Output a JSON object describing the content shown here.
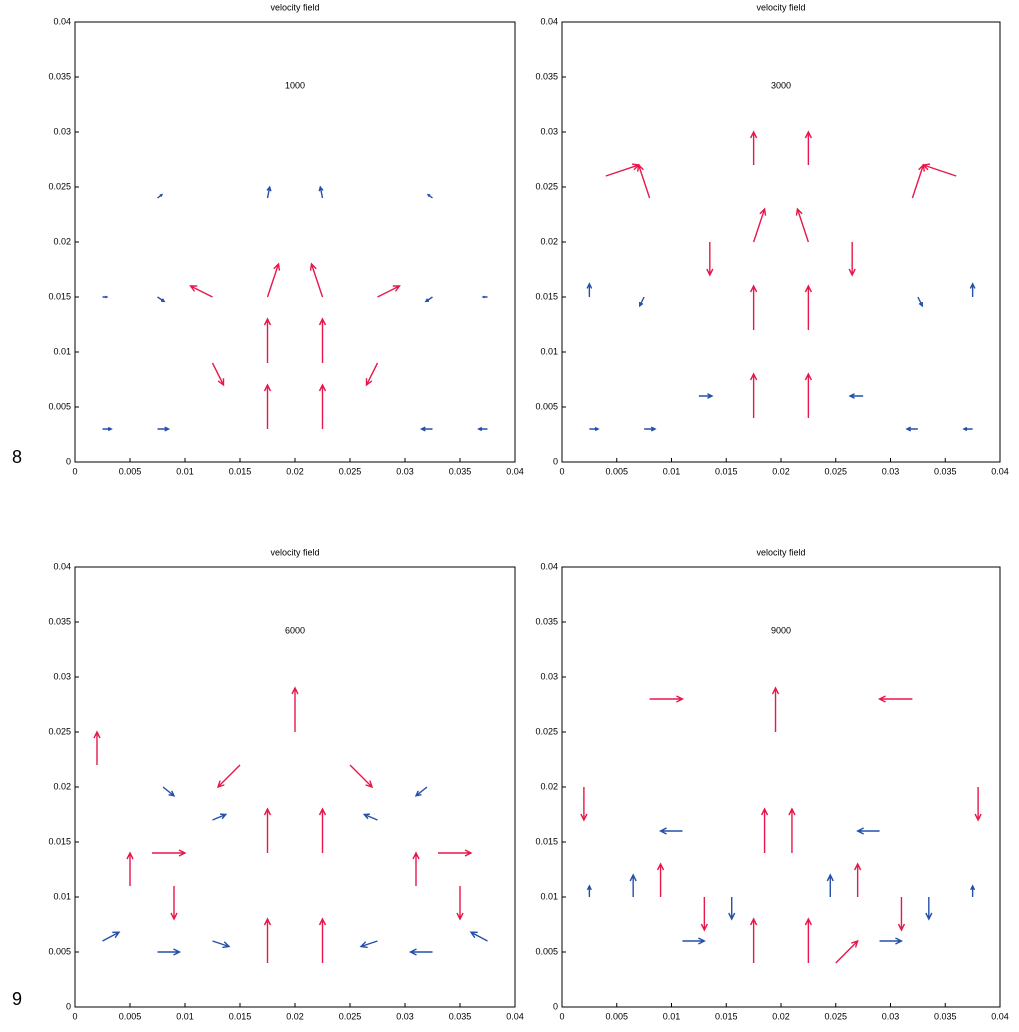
{
  "figure_labels": [
    "8",
    "9"
  ],
  "chart_data": [
    {
      "type": "quiver",
      "title": "velocity field",
      "annotation": "1000",
      "xlim": [
        0,
        0.04
      ],
      "ylim": [
        0,
        0.04
      ],
      "xticks": [
        0,
        0.005,
        0.01,
        0.015,
        0.02,
        0.025,
        0.03,
        0.035,
        0.04
      ],
      "yticks": [
        0,
        0.005,
        0.01,
        0.015,
        0.02,
        0.025,
        0.03,
        0.035,
        0.04
      ],
      "series": [
        {
          "color": "#2350a8",
          "x": [
            0.0025,
            0.0075,
            0.0325,
            0.0375,
            0.0025,
            0.0075,
            0.0325,
            0.0375,
            0.0075,
            0.0325,
            0.0175,
            0.0225
          ],
          "y": [
            0.003,
            0.003,
            0.003,
            0.003,
            0.015,
            0.015,
            0.015,
            0.015,
            0.024,
            0.024,
            0.024,
            0.024
          ],
          "u": [
            0.0008,
            0.001,
            -0.001,
            -0.0008,
            0.0004,
            0.0006,
            -0.0006,
            -0.0004,
            0.0004,
            -0.0004,
            0.0002,
            -0.0002
          ],
          "v": [
            0,
            0,
            0,
            0,
            0,
            -0.0004,
            -0.0004,
            0,
            0.0003,
            0.0003,
            0.001,
            0.001
          ]
        },
        {
          "color": "#e8174a",
          "x": [
            0.0175,
            0.0225,
            0.0175,
            0.0225,
            0.0175,
            0.0225,
            0.0125,
            0.0275,
            0.0125,
            0.0275
          ],
          "y": [
            0.003,
            0.003,
            0.009,
            0.009,
            0.015,
            0.015,
            0.015,
            0.015,
            0.009,
            0.009
          ],
          "u": [
            0,
            0,
            0,
            0,
            0.001,
            -0.001,
            -0.002,
            0.002,
            0.001,
            -0.001
          ],
          "v": [
            0.004,
            0.004,
            0.004,
            0.004,
            0.003,
            0.003,
            0.001,
            0.001,
            -0.002,
            -0.002
          ]
        }
      ]
    },
    {
      "type": "quiver",
      "title": "velocity field",
      "annotation": "3000",
      "xlim": [
        0,
        0.04
      ],
      "ylim": [
        0,
        0.04
      ],
      "xticks": [
        0,
        0.005,
        0.01,
        0.015,
        0.02,
        0.025,
        0.03,
        0.035,
        0.04
      ],
      "yticks": [
        0,
        0.005,
        0.01,
        0.015,
        0.02,
        0.025,
        0.03,
        0.035,
        0.04
      ],
      "series": [
        {
          "color": "#2350a8",
          "x": [
            0.0025,
            0.0075,
            0.0125,
            0.0275,
            0.0325,
            0.0375,
            0.0025,
            0.0375,
            0.0075,
            0.0325
          ],
          "y": [
            0.003,
            0.003,
            0.006,
            0.006,
            0.003,
            0.003,
            0.015,
            0.015,
            0.015,
            0.015
          ],
          "u": [
            0.0008,
            0.001,
            0.0012,
            -0.0012,
            -0.001,
            -0.0008,
            0,
            0,
            -0.0004,
            0.0004
          ],
          "v": [
            0,
            0,
            0,
            0,
            0,
            0,
            0.0012,
            0.0012,
            -0.0008,
            -0.0008
          ]
        },
        {
          "color": "#e8174a",
          "x": [
            0.0175,
            0.0225,
            0.0175,
            0.0225,
            0.0175,
            0.0225,
            0.0175,
            0.0225,
            0.004,
            0.008,
            0.032,
            0.036,
            0.0135,
            0.0265
          ],
          "y": [
            0.004,
            0.004,
            0.012,
            0.012,
            0.02,
            0.02,
            0.027,
            0.027,
            0.026,
            0.024,
            0.024,
            0.026,
            0.02,
            0.02
          ],
          "u": [
            0,
            0,
            0,
            0,
            0.001,
            -0.001,
            0,
            0,
            0.003,
            -0.001,
            0.001,
            -0.003,
            0,
            0
          ],
          "v": [
            0.004,
            0.004,
            0.004,
            0.004,
            0.003,
            0.003,
            0.003,
            0.003,
            0.001,
            0.003,
            0.003,
            0.001,
            -0.003,
            -0.003
          ]
        }
      ]
    },
    {
      "type": "quiver",
      "title": "velocity field",
      "annotation": "6000",
      "xlim": [
        0,
        0.04
      ],
      "ylim": [
        0,
        0.04
      ],
      "xticks": [
        0,
        0.005,
        0.01,
        0.015,
        0.02,
        0.025,
        0.03,
        0.035,
        0.04
      ],
      "yticks": [
        0,
        0.005,
        0.01,
        0.015,
        0.02,
        0.025,
        0.03,
        0.035,
        0.04
      ],
      "series": [
        {
          "color": "#2350a8",
          "x": [
            0.0025,
            0.0075,
            0.0125,
            0.0275,
            0.0325,
            0.0375,
            0.0125,
            0.0275,
            0.008,
            0.032
          ],
          "y": [
            0.006,
            0.005,
            0.006,
            0.006,
            0.005,
            0.006,
            0.017,
            0.017,
            0.02,
            0.02
          ],
          "u": [
            0.0015,
            0.002,
            0.0015,
            -0.0015,
            -0.002,
            -0.0015,
            0.0012,
            -0.0012,
            0.001,
            -0.001
          ],
          "v": [
            0.0008,
            0,
            -0.0005,
            -0.0005,
            0,
            0.0008,
            0.0005,
            0.0005,
            -0.0008,
            -0.0008
          ]
        },
        {
          "color": "#e8174a",
          "x": [
            0.0175,
            0.0225,
            0.0175,
            0.0225,
            0.02,
            0.005,
            0.009,
            0.031,
            0.035,
            0.007,
            0.033,
            0.015,
            0.025,
            0.002
          ],
          "y": [
            0.004,
            0.004,
            0.014,
            0.014,
            0.025,
            0.011,
            0.011,
            0.011,
            0.011,
            0.014,
            0.014,
            0.022,
            0.022,
            0.022
          ],
          "u": [
            0,
            0,
            0,
            0,
            0,
            0,
            0,
            0,
            0,
            0.003,
            0.003,
            -0.002,
            0.002,
            0
          ],
          "v": [
            0.004,
            0.004,
            0.004,
            0.004,
            0.004,
            0.003,
            -0.003,
            0.003,
            -0.003,
            0,
            0,
            -0.002,
            -0.002,
            0.003
          ]
        }
      ]
    },
    {
      "type": "quiver",
      "title": "velocity field",
      "annotation": "9000",
      "xlim": [
        0,
        0.04
      ],
      "ylim": [
        0,
        0.04
      ],
      "xticks": [
        0,
        0.005,
        0.01,
        0.015,
        0.02,
        0.025,
        0.03,
        0.035,
        0.04
      ],
      "yticks": [
        0,
        0.005,
        0.01,
        0.015,
        0.02,
        0.025,
        0.03,
        0.035,
        0.04
      ],
      "series": [
        {
          "color": "#2350a8",
          "x": [
            0.0065,
            0.0155,
            0.0245,
            0.0335,
            0.011,
            0.029,
            0.011,
            0.029,
            0.0025,
            0.0375
          ],
          "y": [
            0.01,
            0.01,
            0.01,
            0.01,
            0.006,
            0.006,
            0.016,
            0.016,
            0.01,
            0.01
          ],
          "u": [
            0,
            0,
            0,
            0,
            0.002,
            0.002,
            -0.002,
            -0.002,
            0,
            0
          ],
          "v": [
            0.002,
            -0.002,
            0.002,
            -0.002,
            0,
            0,
            0,
            0,
            0.001,
            0.001
          ]
        },
        {
          "color": "#e8174a",
          "x": [
            0.0175,
            0.0225,
            0.0185,
            0.021,
            0.0195,
            0.009,
            0.013,
            0.027,
            0.031,
            0.002,
            0.038,
            0.008,
            0.032,
            0.025
          ],
          "y": [
            0.004,
            0.004,
            0.014,
            0.014,
            0.025,
            0.01,
            0.01,
            0.01,
            0.01,
            0.02,
            0.02,
            0.028,
            0.028,
            0.004
          ],
          "u": [
            0,
            0,
            0,
            0,
            0,
            0,
            0,
            0,
            0,
            0,
            0,
            0.003,
            -0.003,
            0.002
          ],
          "v": [
            0.004,
            0.004,
            0.004,
            0.004,
            0.004,
            0.003,
            -0.003,
            0.003,
            -0.003,
            -0.003,
            -0.003,
            0,
            0,
            0.002
          ]
        }
      ]
    }
  ]
}
